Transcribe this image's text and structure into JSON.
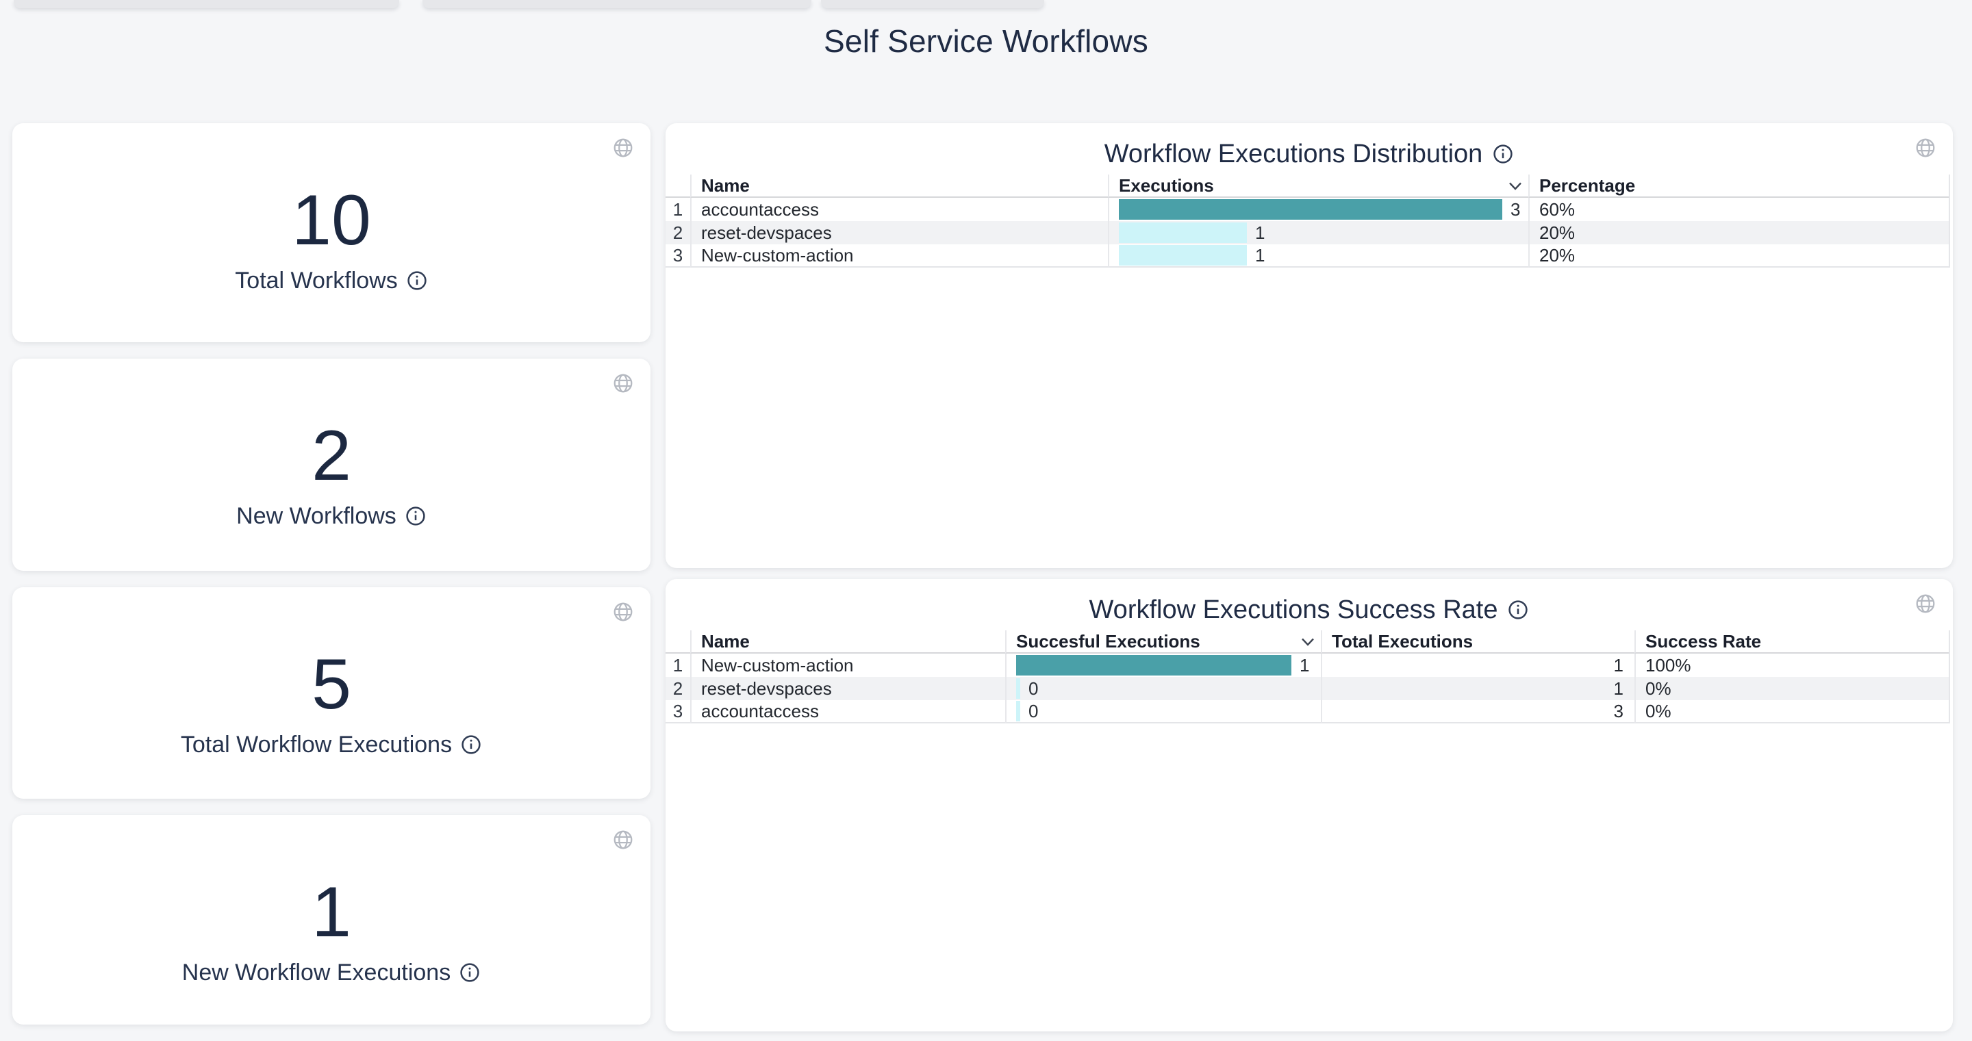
{
  "page": {
    "title": "Self Service Workflows"
  },
  "colors": {
    "accent_teal": "#4aa0a8",
    "accent_cyan": "#cdf4f9",
    "title_navy": "#1f2b44"
  },
  "stat_cards": [
    {
      "value": "10",
      "label": "Total Workflows"
    },
    {
      "value": "2",
      "label": "New Workflows"
    },
    {
      "value": "5",
      "label": "Total Workflow Executions"
    },
    {
      "value": "1",
      "label": "New Workflow Executions"
    }
  ],
  "tables": [
    {
      "title": "Workflow Executions Distribution",
      "columns": [
        "Name",
        "Executions",
        "Percentage"
      ],
      "sorted_column": "Executions",
      "sort_direction": "desc",
      "bar_max": 3,
      "rows": [
        {
          "index": "1",
          "name": "accountaccess",
          "executions": 3,
          "executions_label": "3",
          "percentage": "60%"
        },
        {
          "index": "2",
          "name": "reset-devspaces",
          "executions": 1,
          "executions_label": "1",
          "percentage": "20%"
        },
        {
          "index": "3",
          "name": "New-custom-action",
          "executions": 1,
          "executions_label": "1",
          "percentage": "20%"
        }
      ]
    },
    {
      "title": "Workflow Executions Success Rate",
      "columns": [
        "Name",
        "Succesful Executions",
        "Total Executions",
        "Success Rate"
      ],
      "sorted_column": "Succesful Executions",
      "sort_direction": "desc",
      "bar_max": 1,
      "rows": [
        {
          "index": "1",
          "name": "New-custom-action",
          "successful": 1,
          "successful_label": "1",
          "total": "1",
          "rate": "100%"
        },
        {
          "index": "2",
          "name": "reset-devspaces",
          "successful": 0,
          "successful_label": "0",
          "total": "1",
          "rate": "0%"
        },
        {
          "index": "3",
          "name": "accountaccess",
          "successful": 0,
          "successful_label": "0",
          "total": "3",
          "rate": "0%"
        }
      ]
    }
  ]
}
